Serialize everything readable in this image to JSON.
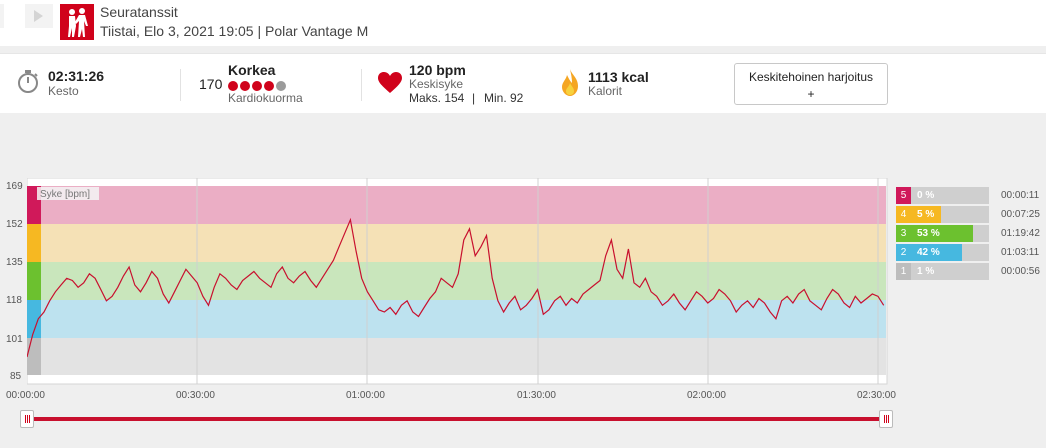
{
  "header": {
    "title": "Seuratanssit",
    "subtitle": "Tiistai, Elo 3, 2021 19:05 | Polar Vantage M"
  },
  "stats": {
    "duration": {
      "value": "02:31:26",
      "label": "Kesto"
    },
    "training_load": {
      "score": "170",
      "value": "Korkea",
      "label": "Kardiokuorma",
      "level": 4,
      "max": 5
    },
    "heart_rate": {
      "value": "120 bpm",
      "label": "Keskisyke",
      "max": "Maks. 154",
      "min": "Min. 92"
    },
    "calories": {
      "value": "1113 kcal",
      "label": "Kalorit"
    },
    "feedback_button": {
      "line1": "Keskitehoinen harjoitus",
      "line2": "+"
    }
  },
  "colors": {
    "brand": "#d0021b",
    "zone5": "#d0195a",
    "zone4": "#f6b822",
    "zone3": "#6cc12f",
    "zone2": "#46b8e0",
    "zone1": "#bdbdbd",
    "line": "#c8102e"
  },
  "chart_data": {
    "type": "line",
    "series_label": "Syke [bpm]",
    "y_ticks": [
      "169",
      "152",
      "135",
      "118",
      "101",
      "85"
    ],
    "x_ticks": [
      "00:00:00",
      "00:30:00",
      "01:00:00",
      "01:30:00",
      "02:00:00",
      "02:30:00"
    ],
    "ylim": [
      85,
      169
    ],
    "xlim_min": [
      0,
      151.4
    ],
    "x_min": [
      0,
      1,
      2,
      3,
      4,
      5,
      6,
      7,
      8,
      9,
      10,
      11,
      12,
      13,
      14,
      15,
      16,
      17,
      18,
      19,
      20,
      21,
      22,
      23,
      24,
      25,
      26,
      27,
      28,
      29,
      30,
      31,
      32,
      33,
      34,
      35,
      36,
      37,
      38,
      39,
      40,
      41,
      42,
      43,
      44,
      45,
      46,
      47,
      48,
      49,
      50,
      51,
      52,
      53,
      54,
      55,
      56,
      57,
      58,
      59,
      60,
      61,
      62,
      63,
      64,
      65,
      66,
      67,
      68,
      69,
      70,
      71,
      72,
      73,
      74,
      75,
      76,
      77,
      78,
      79,
      80,
      81,
      82,
      83,
      84,
      85,
      86,
      87,
      88,
      89,
      90,
      91,
      92,
      93,
      94,
      95,
      96,
      97,
      98,
      99,
      100,
      101,
      102,
      103,
      104,
      105,
      106,
      107,
      108,
      109,
      110,
      111,
      112,
      113,
      114,
      115,
      116,
      117,
      118,
      119,
      120,
      121,
      122,
      123,
      124,
      125,
      126,
      127,
      128,
      129,
      130,
      131,
      132,
      133,
      134,
      135,
      136,
      137,
      138,
      139,
      140,
      141,
      142,
      143,
      144,
      145,
      146,
      147,
      148,
      149,
      150,
      151
    ],
    "y_bpm": [
      93,
      103,
      110,
      113,
      118,
      122,
      125,
      128,
      127,
      124,
      126,
      130,
      128,
      123,
      118,
      120,
      124,
      129,
      133,
      125,
      122,
      126,
      131,
      128,
      121,
      117,
      122,
      127,
      132,
      129,
      126,
      120,
      116,
      124,
      130,
      128,
      125,
      123,
      127,
      129,
      131,
      128,
      126,
      124,
      130,
      133,
      128,
      126,
      129,
      131,
      127,
      124,
      128,
      132,
      136,
      142,
      148,
      154,
      140,
      128,
      122,
      118,
      114,
      113,
      115,
      112,
      116,
      118,
      113,
      111,
      115,
      119,
      122,
      128,
      126,
      124,
      130,
      145,
      150,
      138,
      142,
      147,
      128,
      118,
      113,
      117,
      120,
      114,
      116,
      119,
      123,
      112,
      114,
      118,
      120,
      116,
      119,
      117,
      121,
      123,
      125,
      127,
      138,
      145,
      132,
      128,
      141,
      126,
      124,
      128,
      122,
      120,
      116,
      118,
      121,
      117,
      114,
      118,
      122,
      120,
      117,
      119,
      123,
      121,
      118,
      113,
      116,
      118,
      115,
      119,
      117,
      113,
      110,
      118,
      120,
      117,
      121,
      123,
      118,
      116,
      114,
      119,
      123,
      121,
      117,
      115,
      120,
      117,
      119,
      121,
      120,
      116
    ]
  },
  "zones": [
    {
      "num": "5",
      "pct": "0 %",
      "pct_value": 0,
      "time": "00:00:11"
    },
    {
      "num": "4",
      "pct": "5 %",
      "pct_value": 5,
      "time": "00:07:25"
    },
    {
      "num": "3",
      "pct": "53 %",
      "pct_value": 53,
      "time": "01:19:42"
    },
    {
      "num": "2",
      "pct": "42 %",
      "pct_value": 42,
      "time": "01:03:11"
    },
    {
      "num": "1",
      "pct": "1 %",
      "pct_value": 1,
      "time": "00:00:56"
    }
  ]
}
